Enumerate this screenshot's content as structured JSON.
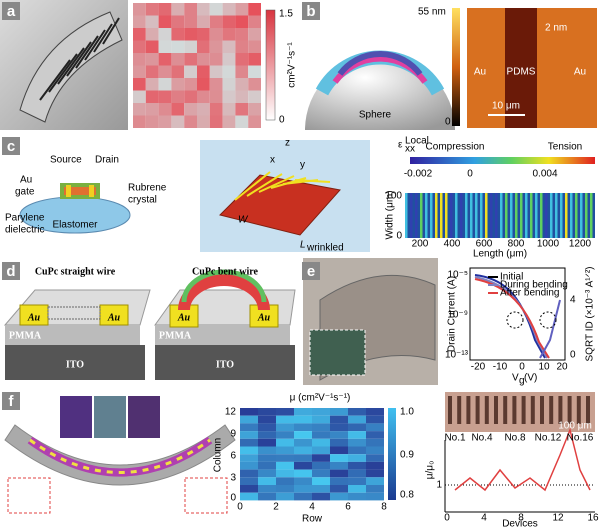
{
  "panels": {
    "a": {
      "label": "a",
      "colorbar": {
        "max": "1.5",
        "min": "0",
        "unit": "cm²V⁻¹s⁻¹"
      }
    },
    "b": {
      "label": "b",
      "sphere": "Sphere",
      "height_max": "55 nm",
      "height_min": "0",
      "step": "2 nm",
      "regions": [
        "Au",
        "PDMS",
        "Au"
      ],
      "scale": "10 μm"
    },
    "c": {
      "label": "c",
      "device": {
        "source": "Source",
        "drain": "Drain",
        "gate": [
          "Au",
          "gate"
        ],
        "crystal": [
          "Rubrene",
          "crystal"
        ],
        "dielectric": [
          "Parylene",
          "dielectric"
        ],
        "substrate": "Elastomer"
      },
      "axes": [
        "z",
        "x",
        "y"
      ],
      "width": "W",
      "length": "L",
      "length_sub": "wrinkled",
      "strain": {
        "symbol": "ε",
        "sub": "xx",
        "sup": "Local",
        "compression": "Compression",
        "tension": "Tension",
        "ticks": [
          "-0.002",
          "0",
          "0.004"
        ]
      },
      "map": {
        "ylabel": "Width (μm)",
        "yticks": [
          "0",
          "100"
        ],
        "xlabel": "Length (μm)",
        "xticks": [
          "200",
          "400",
          "600",
          "800",
          "1000",
          "1200"
        ]
      }
    },
    "d": {
      "label": "d",
      "straight": "CuPc straight wire",
      "bent": "CuPc bent wire",
      "electrode": "Au",
      "layer": "PMMA",
      "substrate": "ITO"
    },
    "e": {
      "label": "e",
      "ylabel": "Drain Current (A)",
      "yticks": [
        "10⁻⁵",
        "10⁻⁹",
        "10⁻¹³"
      ],
      "xlabel": "V",
      "xlabel_sub": "g",
      "xlabel_unit": " (V)",
      "xticks": [
        "-20",
        "-10",
        "0",
        "10",
        "20"
      ],
      "y2label": "SQRT ID (×10⁻³ A¹ᐟ²)",
      "y2ticks": [
        "0",
        "4"
      ],
      "legend": [
        "Initial",
        "During bending",
        "After bending"
      ]
    },
    "f": {
      "label": "f",
      "map_title": "μ (cm²V⁻¹s⁻¹)",
      "map_ylabel": "Column",
      "map_yticks": [
        "12",
        "9",
        "6",
        "3",
        "0"
      ],
      "map_xlabel": "Row",
      "map_xticks": [
        "0",
        "2",
        "4",
        "6",
        "8"
      ],
      "colorbar": [
        "1.0",
        "0.9",
        "0.8"
      ],
      "ratio": "μ/μ₀",
      "devices": [
        "No.1",
        "No.4",
        "No.8",
        "No.12",
        "No.16"
      ],
      "scale": "100 μm",
      "xlabel": "Devices",
      "xticks": [
        "0",
        "4",
        "8",
        "12",
        "16"
      ],
      "yticks": [
        "1"
      ]
    }
  }
}
